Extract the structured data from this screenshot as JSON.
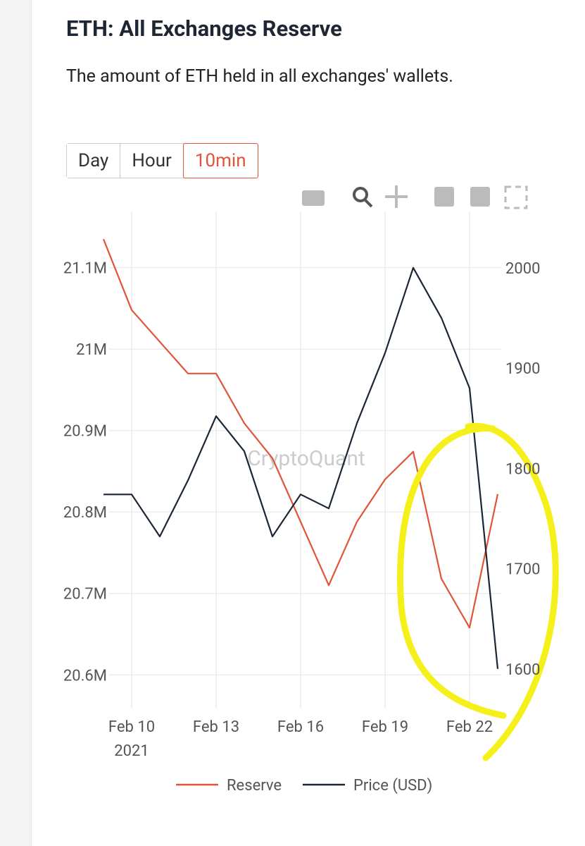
{
  "chart_data": {
    "type": "line",
    "title": "ETH: All Exchanges Reserve",
    "subtitle": "The amount of ETH held in all exchanges' wallets.",
    "intervals": [
      "Day",
      "Hour",
      "10min"
    ],
    "watermark": "CryptoQuant",
    "x": [
      "2021-02-09",
      "2021-02-10",
      "2021-02-11",
      "2021-02-12",
      "2021-02-13",
      "2021-02-14",
      "2021-02-15",
      "2021-02-16",
      "2021-02-17",
      "2021-02-18",
      "2021-02-19",
      "2021-02-20",
      "2021-02-21",
      "2021-02-22",
      "2021-02-23"
    ],
    "xlim": [
      "2021-02-09",
      "2021-02-23"
    ],
    "xticks": [
      {
        "value": "2021-02-10",
        "label": "Feb 10"
      },
      {
        "value": "2021-02-13",
        "label": "Feb 13"
      },
      {
        "value": "2021-02-16",
        "label": "Feb 16"
      },
      {
        "value": "2021-02-19",
        "label": "Feb 19"
      },
      {
        "value": "2021-02-22",
        "label": "Feb 22"
      }
    ],
    "x_year_label": "2021",
    "ylim": [
      20563000,
      21143000
    ],
    "yticks": [
      {
        "value": 20600000,
        "label": "20.6M"
      },
      {
        "value": 20700000,
        "label": "20.7M"
      },
      {
        "value": 20800000,
        "label": "20.8M"
      },
      {
        "value": 20900000,
        "label": "20.9M"
      },
      {
        "value": 21000000,
        "label": "21M"
      },
      {
        "value": 21100000,
        "label": "21.1M"
      }
    ],
    "y2lim": [
      1564,
      2035
    ],
    "y2ticks": [
      1600,
      1700,
      1800,
      1900,
      2000
    ],
    "grid": true,
    "legend": "bottom",
    "series": [
      {
        "name": "Reserve",
        "color": "#e0553a",
        "values": [
          21135000,
          21048000,
          21009000,
          20970000,
          20970000,
          20909000,
          20866000,
          20788000,
          20710000,
          20788000,
          20840000,
          20874000,
          20718000,
          20658000,
          20822000
        ]
      },
      {
        "name": "Price (USD)",
        "color": "#1b2635",
        "axis": "y2",
        "values": [
          1774,
          1774,
          1732,
          1788,
          1852,
          1817,
          1732,
          1774,
          1760,
          1845,
          1915,
          2000,
          1950,
          1880,
          1600
        ]
      }
    ]
  }
}
